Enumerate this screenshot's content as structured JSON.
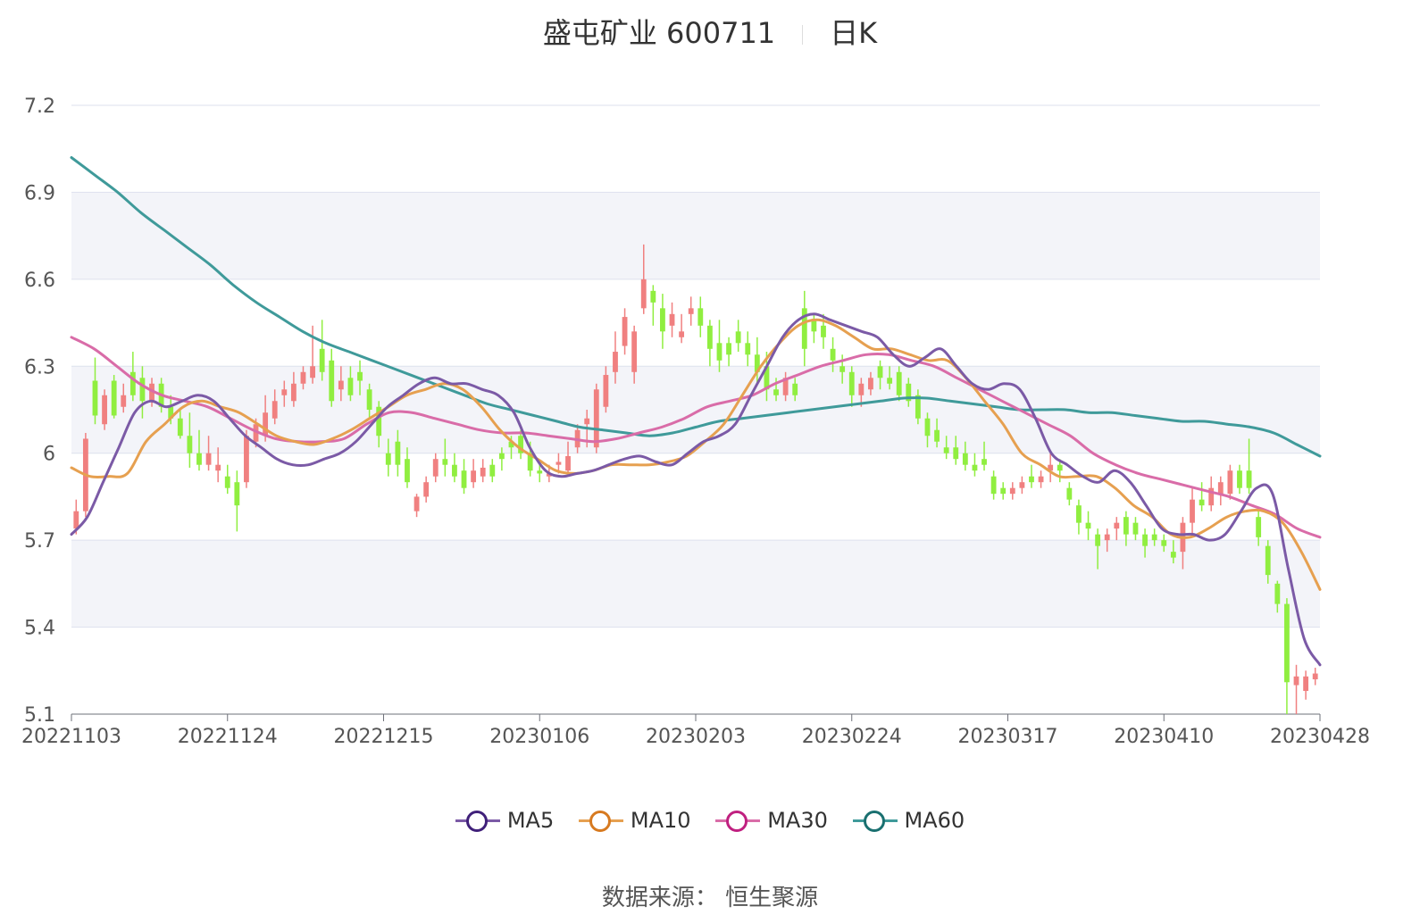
{
  "title": {
    "name": "盛屯矿业 600711",
    "period": "日K"
  },
  "source": "数据来源： 恒生聚源",
  "chart_data": {
    "type": "candlestick",
    "y_ticks": [
      "7.2",
      "6.9",
      "6.6",
      "6.3",
      "6",
      "5.7",
      "5.4",
      "5.1"
    ],
    "ylim": [
      5.1,
      7.2
    ],
    "x_tick_labels": [
      "20221103",
      "20221124",
      "20221215",
      "20230106",
      "20230203",
      "20230224",
      "20230317",
      "20230410",
      "20230428"
    ],
    "grid": true,
    "legend_position": "bottom",
    "colors": {
      "up": "#f08080",
      "down": "#90ee40",
      "MA5": "#7b5aa6",
      "MA10": "#e6a050",
      "MA30": "#d96ca8",
      "MA60": "#3f9a9a",
      "MA5_ring": "#40207a",
      "MA10_ring": "#d77a20",
      "MA30_ring": "#c02080",
      "MA60_ring": "#1a7070"
    },
    "candles": [
      [
        5.74,
        5.8,
        5.72,
        5.84
      ],
      [
        5.8,
        6.05,
        5.78,
        6.07
      ],
      [
        6.25,
        6.13,
        6.1,
        6.33
      ],
      [
        6.1,
        6.2,
        6.08,
        6.22
      ],
      [
        6.25,
        6.13,
        6.12,
        6.27
      ],
      [
        6.16,
        6.2,
        6.14,
        6.24
      ],
      [
        6.28,
        6.2,
        6.18,
        6.35
      ],
      [
        6.26,
        6.18,
        6.12,
        6.3
      ],
      [
        6.18,
        6.24,
        6.16,
        6.26
      ],
      [
        6.24,
        6.16,
        6.14,
        6.26
      ],
      [
        6.16,
        6.12,
        6.1,
        6.2
      ],
      [
        6.12,
        6.06,
        6.05,
        6.15
      ],
      [
        6.06,
        6.0,
        5.95,
        6.14
      ],
      [
        6.0,
        5.96,
        5.94,
        6.08
      ],
      [
        5.96,
        6.0,
        5.94,
        6.06
      ],
      [
        5.94,
        5.96,
        5.9,
        6.02
      ],
      [
        5.92,
        5.88,
        5.86,
        5.96
      ],
      [
        5.9,
        5.82,
        5.73,
        5.94
      ],
      [
        5.9,
        6.06,
        5.88,
        6.08
      ],
      [
        6.04,
        6.1,
        6.02,
        6.12
      ],
      [
        6.06,
        6.14,
        6.04,
        6.2
      ],
      [
        6.12,
        6.18,
        6.1,
        6.22
      ],
      [
        6.2,
        6.22,
        6.16,
        6.25
      ],
      [
        6.18,
        6.24,
        6.16,
        6.28
      ],
      [
        6.24,
        6.28,
        6.22,
        6.3
      ],
      [
        6.26,
        6.3,
        6.24,
        6.44
      ],
      [
        6.36,
        6.28,
        6.25,
        6.46
      ],
      [
        6.32,
        6.18,
        6.16,
        6.36
      ],
      [
        6.22,
        6.25,
        6.18,
        6.3
      ],
      [
        6.26,
        6.2,
        6.18,
        6.3
      ],
      [
        6.28,
        6.25,
        6.2,
        6.32
      ],
      [
        6.22,
        6.15,
        6.12,
        6.24
      ],
      [
        6.16,
        6.06,
        6.02,
        6.18
      ],
      [
        6.0,
        5.96,
        5.92,
        6.05
      ],
      [
        6.04,
        5.96,
        5.92,
        6.08
      ],
      [
        5.98,
        5.9,
        5.88,
        6.02
      ],
      [
        5.8,
        5.85,
        5.78,
        5.86
      ],
      [
        5.85,
        5.9,
        5.83,
        5.92
      ],
      [
        5.92,
        5.98,
        5.9,
        6.0
      ],
      [
        5.98,
        5.96,
        5.92,
        6.05
      ],
      [
        5.96,
        5.92,
        5.9,
        6.0
      ],
      [
        5.94,
        5.88,
        5.86,
        5.98
      ],
      [
        5.9,
        5.94,
        5.88,
        5.98
      ],
      [
        5.92,
        5.95,
        5.9,
        5.98
      ],
      [
        5.96,
        5.92,
        5.9,
        5.98
      ],
      [
        6.0,
        5.98,
        5.94,
        6.02
      ],
      [
        6.04,
        6.02,
        5.98,
        6.06
      ],
      [
        6.06,
        6.0,
        5.98,
        6.08
      ],
      [
        6.0,
        5.94,
        5.92,
        6.04
      ],
      [
        5.94,
        5.93,
        5.9,
        5.96
      ],
      [
        5.92,
        5.93,
        5.9,
        5.96
      ],
      [
        5.96,
        5.97,
        5.93,
        6.0
      ],
      [
        5.94,
        5.99,
        5.93,
        6.04
      ],
      [
        6.02,
        6.08,
        6.0,
        6.1
      ],
      [
        6.1,
        6.12,
        6.02,
        6.15
      ],
      [
        6.02,
        6.22,
        6.0,
        6.24
      ],
      [
        6.16,
        6.27,
        6.14,
        6.3
      ],
      [
        6.28,
        6.35,
        6.24,
        6.42
      ],
      [
        6.37,
        6.47,
        6.34,
        6.5
      ],
      [
        6.28,
        6.42,
        6.24,
        6.44
      ],
      [
        6.5,
        6.6,
        6.48,
        6.72
      ],
      [
        6.56,
        6.52,
        6.44,
        6.58
      ],
      [
        6.5,
        6.42,
        6.36,
        6.55
      ],
      [
        6.44,
        6.48,
        6.4,
        6.52
      ],
      [
        6.4,
        6.42,
        6.38,
        6.48
      ],
      [
        6.48,
        6.5,
        6.44,
        6.54
      ],
      [
        6.5,
        6.44,
        6.4,
        6.54
      ],
      [
        6.44,
        6.36,
        6.3,
        6.46
      ],
      [
        6.38,
        6.32,
        6.28,
        6.46
      ],
      [
        6.38,
        6.34,
        6.3,
        6.4
      ],
      [
        6.42,
        6.38,
        6.35,
        6.46
      ],
      [
        6.38,
        6.34,
        6.3,
        6.42
      ],
      [
        6.34,
        6.28,
        6.24,
        6.4
      ],
      [
        6.3,
        6.22,
        6.18,
        6.35
      ],
      [
        6.22,
        6.2,
        6.18,
        6.26
      ],
      [
        6.2,
        6.26,
        6.18,
        6.28
      ],
      [
        6.24,
        6.2,
        6.18,
        6.26
      ],
      [
        6.5,
        6.36,
        6.3,
        6.56
      ],
      [
        6.46,
        6.42,
        6.38,
        6.48
      ],
      [
        6.44,
        6.4,
        6.36,
        6.48
      ],
      [
        6.36,
        6.32,
        6.28,
        6.4
      ],
      [
        6.3,
        6.28,
        6.24,
        6.34
      ],
      [
        6.28,
        6.2,
        6.16,
        6.3
      ],
      [
        6.2,
        6.24,
        6.16,
        6.26
      ],
      [
        6.22,
        6.26,
        6.2,
        6.28
      ],
      [
        6.3,
        6.26,
        6.22,
        6.32
      ],
      [
        6.26,
        6.24,
        6.22,
        6.3
      ],
      [
        6.28,
        6.2,
        6.18,
        6.3
      ],
      [
        6.24,
        6.18,
        6.16,
        6.26
      ],
      [
        6.2,
        6.12,
        6.1,
        6.22
      ],
      [
        6.12,
        6.06,
        6.02,
        6.14
      ],
      [
        6.08,
        6.04,
        6.02,
        6.12
      ],
      [
        6.02,
        6.0,
        5.98,
        6.06
      ],
      [
        6.02,
        5.98,
        5.96,
        6.06
      ],
      [
        6.0,
        5.96,
        5.94,
        6.04
      ],
      [
        5.96,
        5.94,
        5.92,
        6.0
      ],
      [
        5.98,
        5.96,
        5.94,
        6.04
      ],
      [
        5.92,
        5.86,
        5.84,
        5.94
      ],
      [
        5.88,
        5.86,
        5.84,
        5.9
      ],
      [
        5.86,
        5.88,
        5.84,
        5.9
      ],
      [
        5.88,
        5.9,
        5.86,
        5.92
      ],
      [
        5.92,
        5.9,
        5.88,
        5.96
      ],
      [
        5.9,
        5.92,
        5.88,
        5.94
      ],
      [
        5.94,
        5.96,
        5.9,
        6.0
      ],
      [
        5.96,
        5.94,
        5.9,
        5.98
      ],
      [
        5.88,
        5.84,
        5.82,
        5.9
      ],
      [
        5.82,
        5.76,
        5.72,
        5.84
      ],
      [
        5.76,
        5.74,
        5.7,
        5.8
      ],
      [
        5.72,
        5.68,
        5.6,
        5.74
      ],
      [
        5.7,
        5.72,
        5.66,
        5.74
      ],
      [
        5.74,
        5.76,
        5.7,
        5.78
      ],
      [
        5.78,
        5.72,
        5.68,
        5.8
      ],
      [
        5.76,
        5.72,
        5.7,
        5.78
      ],
      [
        5.72,
        5.68,
        5.64,
        5.74
      ],
      [
        5.72,
        5.7,
        5.68,
        5.74
      ],
      [
        5.7,
        5.68,
        5.66,
        5.72
      ],
      [
        5.66,
        5.64,
        5.62,
        5.7
      ],
      [
        5.66,
        5.76,
        5.6,
        5.78
      ],
      [
        5.76,
        5.84,
        5.72,
        5.88
      ],
      [
        5.84,
        5.82,
        5.8,
        5.9
      ],
      [
        5.82,
        5.88,
        5.8,
        5.92
      ],
      [
        5.86,
        5.9,
        5.82,
        5.92
      ],
      [
        5.86,
        5.94,
        5.84,
        5.96
      ],
      [
        5.94,
        5.88,
        5.86,
        5.96
      ],
      [
        5.94,
        5.88,
        5.86,
        6.05
      ],
      [
        5.78,
        5.71,
        5.68,
        5.8
      ],
      [
        5.68,
        5.58,
        5.55,
        5.7
      ],
      [
        5.55,
        5.48,
        5.45,
        5.56
      ],
      [
        5.48,
        5.21,
        5.1,
        5.5
      ],
      [
        5.2,
        5.23,
        5.1,
        5.27
      ],
      [
        5.18,
        5.23,
        5.15,
        5.25
      ],
      [
        5.22,
        5.24,
        5.2,
        5.26
      ]
    ],
    "series": [
      {
        "name": "MA5",
        "values": [
          5.72,
          5.78,
          5.9,
          6.02,
          6.14,
          6.18,
          6.16,
          6.18,
          6.2,
          6.18,
          6.12,
          6.06,
          6.02,
          5.98,
          5.96,
          5.96,
          5.98,
          6.0,
          6.04,
          6.1,
          6.16,
          6.2,
          6.24,
          6.26,
          6.24,
          6.24,
          6.22,
          6.2,
          6.14,
          6.02,
          5.94,
          5.92,
          5.93,
          5.94,
          5.96,
          5.98,
          5.99,
          5.97,
          5.96,
          6.0,
          6.04,
          6.06,
          6.1,
          6.2,
          6.3,
          6.4,
          6.46,
          6.48,
          6.46,
          6.44,
          6.42,
          6.4,
          6.34,
          6.3,
          6.33,
          6.36,
          6.3,
          6.24,
          6.22,
          6.24,
          6.22,
          6.12,
          6.0,
          5.96,
          5.92,
          5.9,
          5.94,
          5.9,
          5.82,
          5.74,
          5.72,
          5.72,
          5.7,
          5.72,
          5.8,
          5.88,
          5.86,
          5.6,
          5.36,
          5.27
        ]
      },
      {
        "name": "MA10",
        "values": [
          5.95,
          5.92,
          5.92,
          5.93,
          6.04,
          6.1,
          6.16,
          6.18,
          6.16,
          6.14,
          6.1,
          6.06,
          6.04,
          6.03,
          6.05,
          6.08,
          6.12,
          6.16,
          6.2,
          6.22,
          6.24,
          6.22,
          6.16,
          6.08,
          6.02,
          5.98,
          5.94,
          5.93,
          5.94,
          5.96,
          5.96,
          5.96,
          5.97,
          5.99,
          6.04,
          6.1,
          6.2,
          6.3,
          6.38,
          6.44,
          6.46,
          6.44,
          6.4,
          6.36,
          6.36,
          6.34,
          6.32,
          6.32,
          6.26,
          6.18,
          6.1,
          6.0,
          5.96,
          5.92,
          5.92,
          5.92,
          5.88,
          5.82,
          5.78,
          5.72,
          5.71,
          5.74,
          5.78,
          5.8,
          5.8,
          5.76,
          5.66,
          5.53
        ]
      },
      {
        "name": "MA30",
        "values": [
          6.4,
          6.36,
          6.3,
          6.24,
          6.2,
          6.18,
          6.16,
          6.12,
          6.08,
          6.05,
          6.04,
          6.04,
          6.05,
          6.1,
          6.14,
          6.14,
          6.12,
          6.1,
          6.08,
          6.07,
          6.07,
          6.06,
          6.05,
          6.04,
          6.05,
          6.07,
          6.09,
          6.12,
          6.16,
          6.18,
          6.2,
          6.24,
          6.27,
          6.3,
          6.32,
          6.34,
          6.34,
          6.32,
          6.3,
          6.26,
          6.22,
          6.18,
          6.14,
          6.1,
          6.06,
          6.0,
          5.96,
          5.93,
          5.91,
          5.89,
          5.87,
          5.85,
          5.82,
          5.79,
          5.74,
          5.71
        ]
      },
      {
        "name": "MA60",
        "values": [
          7.02,
          6.96,
          6.9,
          6.83,
          6.77,
          6.71,
          6.65,
          6.58,
          6.52,
          6.47,
          6.42,
          6.38,
          6.35,
          6.32,
          6.29,
          6.26,
          6.23,
          6.2,
          6.17,
          6.15,
          6.13,
          6.11,
          6.09,
          6.08,
          6.07,
          6.06,
          6.07,
          6.09,
          6.11,
          6.12,
          6.13,
          6.14,
          6.15,
          6.16,
          6.17,
          6.18,
          6.19,
          6.19,
          6.18,
          6.17,
          6.16,
          6.15,
          6.15,
          6.15,
          6.14,
          6.14,
          6.13,
          6.12,
          6.11,
          6.11,
          6.1,
          6.09,
          6.07,
          6.03,
          5.99
        ]
      }
    ]
  }
}
